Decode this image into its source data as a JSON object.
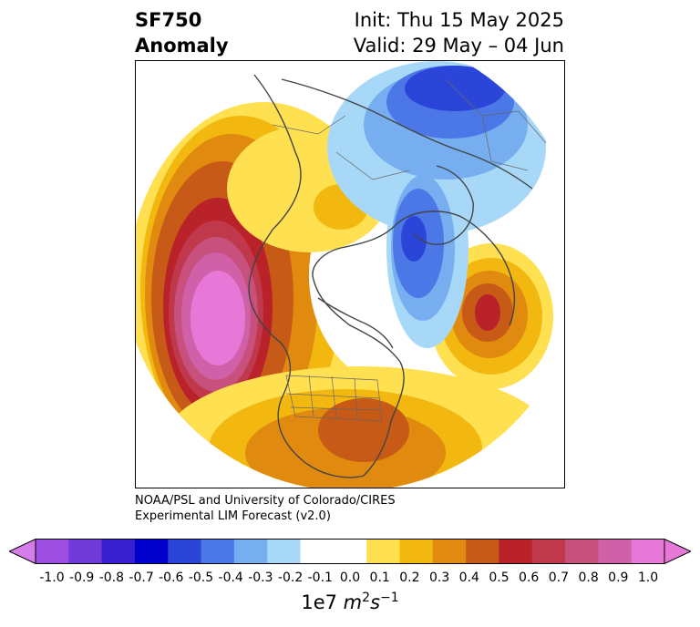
{
  "title": {
    "variable": "SF750",
    "kind": "Anomaly",
    "init": "Init: Thu 15 May 2025",
    "valid": "Valid: 29 May – 04 Jun"
  },
  "credit": {
    "line1": "NOAA/PSL and University of Colorado/CIRES",
    "line2": "Experimental LIM Forecast (v2.0)"
  },
  "colorbar": {
    "ticks": [
      "-1.0",
      "-0.9",
      "-0.8",
      "-0.7",
      "-0.6",
      "-0.5",
      "-0.4",
      "-0.3",
      "-0.2",
      "-0.1",
      "0.0",
      "0.1",
      "0.2",
      "0.3",
      "0.4",
      "0.5",
      "0.6",
      "0.7",
      "0.8",
      "0.9",
      "1.0"
    ],
    "colors": [
      "#9b4ee0",
      "#6f3ad8",
      "#3a1fd0",
      "#0000cd",
      "#2a45d8",
      "#4b78e6",
      "#76aef0",
      "#a8d8f8",
      "#ffffff",
      "#ffffff",
      "#ffe050",
      "#f2b810",
      "#e08a10",
      "#c85a18",
      "#b82228",
      "#c0384c",
      "#c8507c",
      "#d060a8",
      "#e878d8"
    ],
    "over_color": "#e878d8",
    "under_color": "#d57de8",
    "unit_base": "1e7 ",
    "unit_expr": "m",
    "unit_sup1": "2",
    "unit_s": "s",
    "unit_sup2": "−1"
  }
}
